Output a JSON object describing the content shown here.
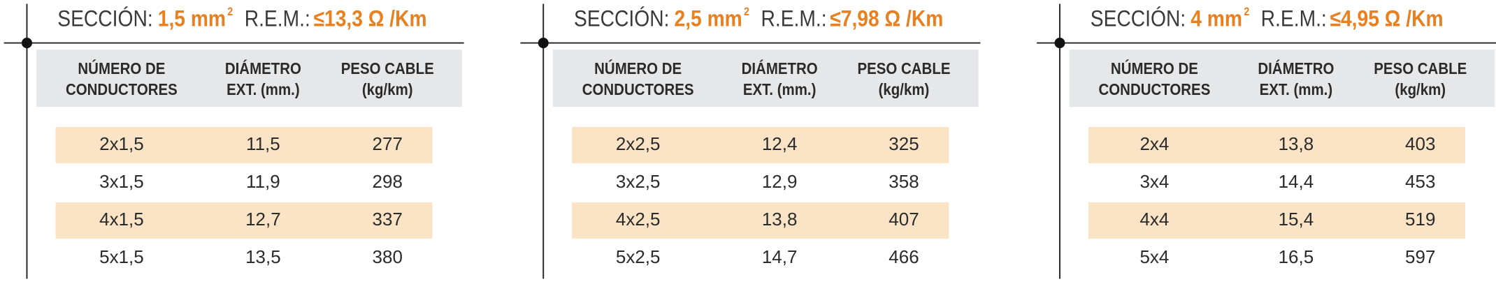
{
  "panels": [
    {
      "section_label": "SECCIÓN:",
      "section": "1,5 mm",
      "section_sup": "2",
      "rem_label": "R.E.M.:",
      "rem": "≤13,3 Ω /Km",
      "headers": [
        [
          "NÚMERO DE",
          "CONDUCTORES"
        ],
        [
          "DIÁMETRO",
          "EXT. (mm.)"
        ],
        [
          "PESO CABLE",
          "(kg/km)"
        ]
      ],
      "rows": [
        [
          "2x1,5",
          "11,5",
          "277"
        ],
        [
          "3x1,5",
          "11,9",
          "298"
        ],
        [
          "4x1,5",
          "12,7",
          "337"
        ],
        [
          "5x1,5",
          "13,5",
          "380"
        ]
      ]
    },
    {
      "section_label": "SECCIÓN:",
      "section": "2,5 mm",
      "section_sup": "2",
      "rem_label": "R.E.M.:",
      "rem": "≤7,98 Ω /Km",
      "headers": [
        [
          "NÚMERO DE",
          "CONDUCTORES"
        ],
        [
          "DIÁMETRO",
          "EXT. (mm.)"
        ],
        [
          "PESO CABLE",
          "(kg/km)"
        ]
      ],
      "rows": [
        [
          "2x2,5",
          "12,4",
          "325"
        ],
        [
          "3x2,5",
          "12,9",
          "358"
        ],
        [
          "4x2,5",
          "13,8",
          "407"
        ],
        [
          "5x2,5",
          "14,7",
          "466"
        ]
      ]
    },
    {
      "section_label": "SECCIÓN:",
      "section": "4 mm",
      "section_sup": "2",
      "rem_label": "R.E.M.:",
      "rem": "≤4,95 Ω /Km",
      "headers": [
        [
          "NÚMERO DE",
          "CONDUCTORES"
        ],
        [
          "DIÁMETRO",
          "EXT. (mm.)"
        ],
        [
          "PESO CABLE",
          "(kg/km)"
        ]
      ],
      "rows": [
        [
          "2x4",
          "13,8",
          "403"
        ],
        [
          "3x4",
          "14,4",
          "453"
        ],
        [
          "4x4",
          "15,4",
          "519"
        ],
        [
          "5x4",
          "16,5",
          "597"
        ]
      ]
    }
  ]
}
